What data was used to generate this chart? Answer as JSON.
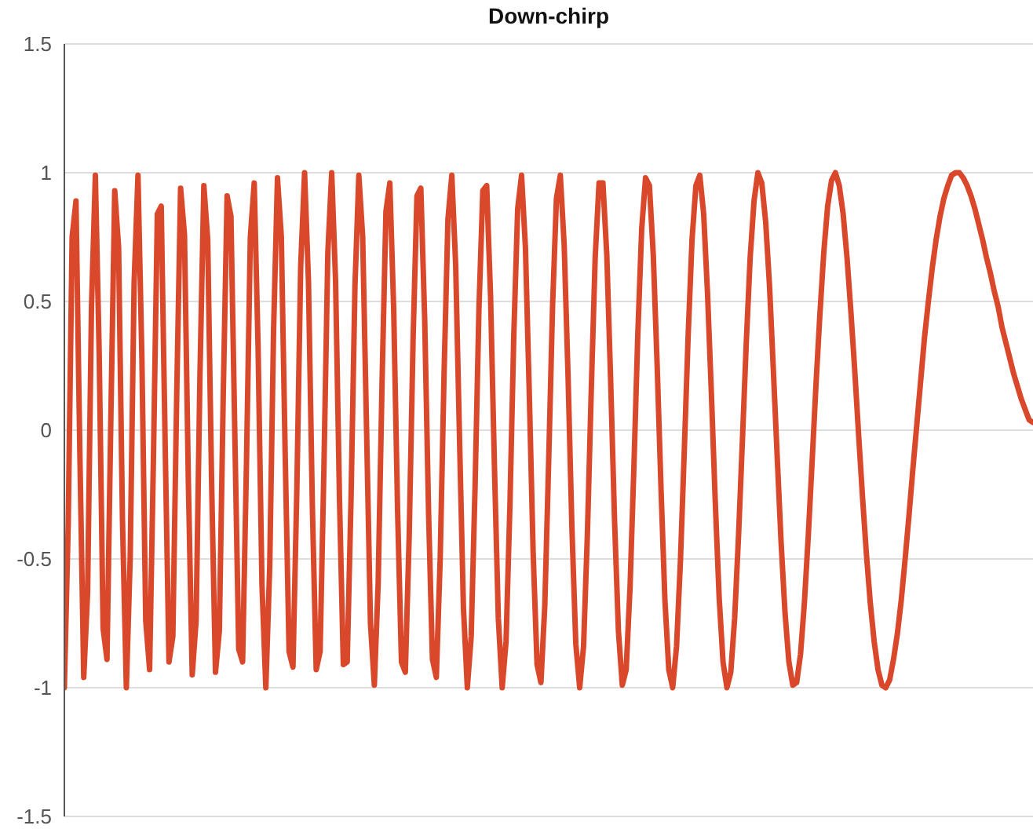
{
  "chart_data": {
    "type": "line",
    "title": "Down-chirp",
    "categories": [
      null,
      null,
      null,
      null,
      null,
      null,
      null,
      null,
      null,
      null,
      null,
      null,
      null,
      null,
      null,
      null,
      null,
      null,
      null,
      null,
      null,
      null,
      null,
      null,
      null,
      null,
      null,
      null,
      null,
      null,
      null,
      null,
      null,
      null,
      null,
      null,
      null,
      null,
      null,
      null,
      null,
      null,
      null,
      null,
      null,
      null,
      null,
      null,
      null,
      null,
      null,
      null,
      null,
      null,
      null,
      null,
      null,
      null,
      null,
      null,
      null,
      null,
      null,
      null,
      null,
      null,
      null,
      null,
      null,
      null,
      null,
      null,
      null,
      null,
      null,
      null,
      null,
      null,
      null,
      null,
      null,
      null,
      null,
      null,
      null,
      null,
      null,
      null,
      null,
      null,
      null,
      null,
      null,
      null,
      null,
      null,
      null,
      null,
      null,
      null,
      null,
      null,
      null,
      null,
      null,
      null,
      null,
      null,
      null,
      null,
      null,
      null,
      null,
      null,
      null,
      null,
      null,
      null,
      null,
      null,
      null,
      null,
      null,
      null,
      null,
      null,
      null,
      null,
      null,
      null,
      null,
      null,
      null,
      null,
      null,
      null,
      null,
      null,
      null,
      null,
      null,
      null,
      null,
      null,
      null,
      null,
      null,
      null,
      null,
      null,
      null,
      null,
      null,
      null,
      null,
      null,
      null,
      null,
      null,
      null,
      null,
      null,
      null,
      null,
      null,
      null,
      null,
      null,
      null,
      null,
      null,
      null,
      null,
      null,
      null,
      null,
      null,
      null,
      null,
      null,
      null,
      null,
      null,
      null,
      null,
      null,
      null,
      null,
      null,
      null,
      null,
      null,
      null,
      null,
      null,
      null,
      null,
      null,
      null,
      null,
      null,
      null,
      null,
      null,
      null,
      null,
      null,
      null,
      null,
      null,
      null,
      null,
      null,
      null,
      null,
      null,
      null,
      null,
      null,
      null,
      null,
      null,
      null,
      null,
      null,
      null,
      null,
      null,
      null,
      null,
      null,
      null,
      null,
      null,
      null,
      null,
      null,
      null,
      null,
      null,
      null,
      null,
      null,
      null,
      null,
      null,
      null,
      null,
      null,
      null,
      null
    ],
    "series": [
      {
        "color": "#d9482b",
        "values": [
          -1,
          -0.36,
          0.75,
          0.89,
          -0.09,
          -0.96,
          -0.63,
          0.48,
          0.99,
          0.29,
          -0.77,
          -0.89,
          0.05,
          0.93,
          0.71,
          -0.35,
          -1,
          -0.49,
          0.57,
          0.99,
          0.29,
          -0.74,
          -0.93,
          -0.1,
          0.84,
          0.87,
          -0.04,
          -0.9,
          -0.8,
          0.14,
          0.94,
          0.76,
          -0.2,
          -0.95,
          -0.74,
          0.22,
          0.95,
          0.74,
          -0.2,
          -0.94,
          -0.78,
          0.13,
          0.91,
          0.83,
          -0.02,
          -0.85,
          -0.9,
          -0.13,
          0.75,
          0.96,
          0.32,
          -0.6,
          -1,
          -0.53,
          0.39,
          0.98,
          0.75,
          -0.1,
          -0.86,
          -0.92,
          -0.23,
          0.64,
          1,
          0.58,
          -0.29,
          -0.93,
          -0.86,
          -0.14,
          0.69,
          1,
          0.58,
          -0.26,
          -0.91,
          -0.9,
          -0.26,
          0.56,
          0.99,
          0.75,
          0,
          -0.75,
          -0.99,
          -0.59,
          0.19,
          0.85,
          0.96,
          0.47,
          -0.31,
          -0.9,
          -0.94,
          -0.41,
          0.35,
          0.91,
          0.94,
          0.43,
          -0.32,
          -0.89,
          -0.96,
          -0.5,
          0.22,
          0.82,
          0.99,
          0.64,
          -0.04,
          -0.69,
          -1,
          -0.8,
          -0.22,
          0.47,
          0.93,
          0.95,
          0.52,
          -0.14,
          -0.73,
          -1,
          -0.82,
          -0.29,
          0.37,
          0.86,
          0.99,
          0.71,
          0.14,
          -0.48,
          -0.91,
          -0.98,
          -0.68,
          -0.12,
          0.48,
          0.9,
          0.99,
          0.72,
          0.21,
          -0.38,
          -0.83,
          -1,
          -0.84,
          -0.4,
          0.16,
          0.67,
          0.96,
          0.96,
          0.68,
          0.19,
          -0.35,
          -0.78,
          -0.99,
          -0.93,
          -0.61,
          -0.14,
          0.37,
          0.78,
          0.98,
          0.95,
          0.68,
          0.25,
          -0.23,
          -0.66,
          -0.93,
          -1,
          -0.84,
          -0.51,
          -0.08,
          0.37,
          0.74,
          0.95,
          0.99,
          0.84,
          0.53,
          0.14,
          -0.28,
          -0.65,
          -0.9,
          -1,
          -0.94,
          -0.73,
          -0.41,
          -0.04,
          0.34,
          0.67,
          0.89,
          1,
          0.96,
          0.81,
          0.56,
          0.23,
          -0.11,
          -0.44,
          -0.71,
          -0.9,
          -0.99,
          -0.98,
          -0.87,
          -0.67,
          -0.41,
          -0.12,
          0.18,
          0.45,
          0.69,
          0.87,
          0.97,
          1,
          0.95,
          0.84,
          0.67,
          0.46,
          0.23,
          -0.02,
          -0.26,
          -0.48,
          -0.67,
          -0.82,
          -0.93,
          -0.99,
          -1,
          -0.97,
          -0.89,
          -0.79,
          -0.66,
          -0.5,
          -0.33,
          -0.15,
          0.02,
          0.19,
          0.36,
          0.5,
          0.63,
          0.74,
          0.83,
          0.9,
          0.95,
          0.99,
          1,
          1,
          0.98,
          0.95,
          0.91,
          0.86,
          0.8,
          0.74,
          0.67,
          0.61,
          0.54,
          0.48,
          0.4,
          0.34,
          0.28,
          0.22,
          0.17,
          0.12,
          0.08,
          0.04,
          0.03
        ]
      }
    ],
    "ylim": [
      -1.5,
      1.5
    ],
    "yticks": [
      -1.5,
      -1,
      -0.5,
      0,
      0.5,
      1,
      1.5
    ],
    "grid": "y",
    "tick_labels": "y",
    "legend": false,
    "marker": "none",
    "line_style": "solid"
  }
}
